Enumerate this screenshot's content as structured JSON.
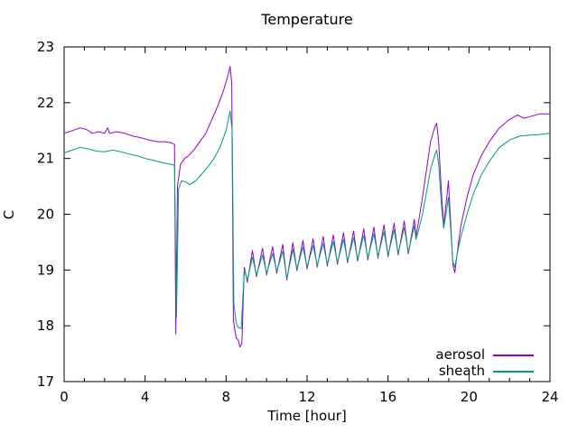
{
  "chart_data": {
    "type": "line",
    "title": "Temperature",
    "xlabel": "Time [hour]",
    "ylabel": "C",
    "xlim": [
      0,
      24
    ],
    "ylim": [
      17,
      23
    ],
    "grid": false,
    "legend_position": "bottom-right-inside",
    "x_major_ticks": [
      0,
      4,
      8,
      12,
      16,
      20,
      24
    ],
    "x_minor_step": 1,
    "y_major_ticks": [
      17,
      18,
      19,
      20,
      21,
      22,
      23
    ],
    "axis_color": "#000000",
    "background_color": "#ffffff",
    "series": [
      {
        "name": "aerosol",
        "color": "#9400d3",
        "points": [
          [
            0,
            21.45
          ],
          [
            0.4,
            21.5
          ],
          [
            0.8,
            21.55
          ],
          [
            1.1,
            21.52
          ],
          [
            1.4,
            21.45
          ],
          [
            1.7,
            21.48
          ],
          [
            2.0,
            21.45
          ],
          [
            2.15,
            21.55
          ],
          [
            2.25,
            21.45
          ],
          [
            2.6,
            21.48
          ],
          [
            3.0,
            21.45
          ],
          [
            3.4,
            21.4
          ],
          [
            3.8,
            21.37
          ],
          [
            4.2,
            21.33
          ],
          [
            4.6,
            21.3
          ],
          [
            5.0,
            21.3
          ],
          [
            5.3,
            21.28
          ],
          [
            5.45,
            21.25
          ],
          [
            5.52,
            17.85
          ],
          [
            5.6,
            20.5
          ],
          [
            5.75,
            20.9
          ],
          [
            5.95,
            21.0
          ],
          [
            6.15,
            21.05
          ],
          [
            6.4,
            21.15
          ],
          [
            6.7,
            21.3
          ],
          [
            7.0,
            21.45
          ],
          [
            7.3,
            21.7
          ],
          [
            7.6,
            21.95
          ],
          [
            7.9,
            22.25
          ],
          [
            8.1,
            22.5
          ],
          [
            8.2,
            22.65
          ],
          [
            8.28,
            22.35
          ],
          [
            8.36,
            18.1
          ],
          [
            8.5,
            17.78
          ],
          [
            8.6,
            17.75
          ],
          [
            8.68,
            17.62
          ],
          [
            8.78,
            17.68
          ],
          [
            8.9,
            19.05
          ],
          [
            9.05,
            18.78
          ],
          [
            9.3,
            19.35
          ],
          [
            9.5,
            18.88
          ],
          [
            9.8,
            19.39
          ],
          [
            10.0,
            18.91
          ],
          [
            10.3,
            19.42
          ],
          [
            10.5,
            18.94
          ],
          [
            10.8,
            19.46
          ],
          [
            11.0,
            18.82
          ],
          [
            11.3,
            19.49
          ],
          [
            11.5,
            18.99
          ],
          [
            11.8,
            19.53
          ],
          [
            12.0,
            19.02
          ],
          [
            12.3,
            19.56
          ],
          [
            12.5,
            19.05
          ],
          [
            12.8,
            19.6
          ],
          [
            13.0,
            19.07
          ],
          [
            13.3,
            19.63
          ],
          [
            13.5,
            19.1
          ],
          [
            13.8,
            19.67
          ],
          [
            14.0,
            19.13
          ],
          [
            14.3,
            19.7
          ],
          [
            14.5,
            19.16
          ],
          [
            14.8,
            19.74
          ],
          [
            15.0,
            19.18
          ],
          [
            15.3,
            19.77
          ],
          [
            15.5,
            19.21
          ],
          [
            15.8,
            19.81
          ],
          [
            16.0,
            19.24
          ],
          [
            16.3,
            19.84
          ],
          [
            16.5,
            19.27
          ],
          [
            16.8,
            19.88
          ],
          [
            17.0,
            19.29
          ],
          [
            17.3,
            19.91
          ],
          [
            17.38,
            19.6
          ],
          [
            17.5,
            19.85
          ],
          [
            17.7,
            20.3
          ],
          [
            17.9,
            20.8
          ],
          [
            18.1,
            21.3
          ],
          [
            18.3,
            21.55
          ],
          [
            18.4,
            21.63
          ],
          [
            18.5,
            21.3
          ],
          [
            18.65,
            20.3
          ],
          [
            18.75,
            19.8
          ],
          [
            18.9,
            20.3
          ],
          [
            18.98,
            20.6
          ],
          [
            19.1,
            19.8
          ],
          [
            19.2,
            19.1
          ],
          [
            19.3,
            18.95
          ],
          [
            19.45,
            19.4
          ],
          [
            19.6,
            19.8
          ],
          [
            19.9,
            20.3
          ],
          [
            20.2,
            20.7
          ],
          [
            20.6,
            21.05
          ],
          [
            21.0,
            21.3
          ],
          [
            21.5,
            21.55
          ],
          [
            22.0,
            21.7
          ],
          [
            22.4,
            21.78
          ],
          [
            22.7,
            21.72
          ],
          [
            23.0,
            21.75
          ],
          [
            23.5,
            21.8
          ],
          [
            24.0,
            21.8
          ]
        ]
      },
      {
        "name": "sheath",
        "color": "#009e73",
        "points": [
          [
            0,
            21.1
          ],
          [
            0.4,
            21.15
          ],
          [
            0.8,
            21.2
          ],
          [
            1.2,
            21.17
          ],
          [
            1.6,
            21.13
          ],
          [
            2.0,
            21.12
          ],
          [
            2.4,
            21.15
          ],
          [
            2.8,
            21.12
          ],
          [
            3.2,
            21.08
          ],
          [
            3.6,
            21.05
          ],
          [
            4.0,
            21.0
          ],
          [
            4.4,
            20.97
          ],
          [
            4.8,
            20.93
          ],
          [
            5.2,
            20.9
          ],
          [
            5.45,
            20.88
          ],
          [
            5.55,
            18.15
          ],
          [
            5.65,
            20.45
          ],
          [
            5.8,
            20.6
          ],
          [
            6.0,
            20.58
          ],
          [
            6.2,
            20.53
          ],
          [
            6.5,
            20.6
          ],
          [
            6.8,
            20.72
          ],
          [
            7.1,
            20.85
          ],
          [
            7.4,
            21.0
          ],
          [
            7.7,
            21.2
          ],
          [
            8.0,
            21.5
          ],
          [
            8.2,
            21.85
          ],
          [
            8.3,
            21.5
          ],
          [
            8.38,
            18.4
          ],
          [
            8.5,
            18.05
          ],
          [
            8.6,
            17.97
          ],
          [
            8.75,
            17.95
          ],
          [
            8.9,
            19.0
          ],
          [
            9.05,
            18.82
          ],
          [
            9.3,
            19.23
          ],
          [
            9.5,
            18.91
          ],
          [
            9.8,
            19.27
          ],
          [
            10.0,
            18.94
          ],
          [
            10.3,
            19.3
          ],
          [
            10.5,
            18.97
          ],
          [
            10.8,
            19.34
          ],
          [
            11.0,
            18.85
          ],
          [
            11.3,
            19.37
          ],
          [
            11.5,
            19.02
          ],
          [
            11.8,
            19.41
          ],
          [
            12.0,
            19.05
          ],
          [
            12.3,
            19.44
          ],
          [
            12.5,
            19.08
          ],
          [
            12.8,
            19.48
          ],
          [
            13.0,
            19.1
          ],
          [
            13.3,
            19.51
          ],
          [
            13.5,
            19.13
          ],
          [
            13.8,
            19.55
          ],
          [
            14.0,
            19.16
          ],
          [
            14.3,
            19.58
          ],
          [
            14.5,
            19.19
          ],
          [
            14.8,
            19.62
          ],
          [
            15.0,
            19.21
          ],
          [
            15.3,
            19.65
          ],
          [
            15.5,
            19.24
          ],
          [
            15.8,
            19.69
          ],
          [
            16.0,
            19.27
          ],
          [
            16.3,
            19.72
          ],
          [
            16.5,
            19.3
          ],
          [
            16.8,
            19.76
          ],
          [
            17.0,
            19.32
          ],
          [
            17.3,
            19.79
          ],
          [
            17.38,
            19.55
          ],
          [
            17.5,
            19.7
          ],
          [
            17.7,
            20.0
          ],
          [
            17.9,
            20.4
          ],
          [
            18.1,
            20.8
          ],
          [
            18.3,
            21.05
          ],
          [
            18.4,
            21.15
          ],
          [
            18.5,
            20.9
          ],
          [
            18.65,
            20.1
          ],
          [
            18.75,
            19.75
          ],
          [
            18.9,
            20.1
          ],
          [
            18.98,
            20.3
          ],
          [
            19.1,
            19.7
          ],
          [
            19.2,
            19.15
          ],
          [
            19.3,
            19.05
          ],
          [
            19.45,
            19.35
          ],
          [
            19.6,
            19.6
          ],
          [
            19.9,
            20.0
          ],
          [
            20.2,
            20.35
          ],
          [
            20.6,
            20.7
          ],
          [
            21.0,
            20.95
          ],
          [
            21.5,
            21.2
          ],
          [
            22.0,
            21.33
          ],
          [
            22.5,
            21.4
          ],
          [
            23.0,
            21.42
          ],
          [
            23.5,
            21.43
          ],
          [
            24.0,
            21.45
          ]
        ]
      }
    ]
  }
}
